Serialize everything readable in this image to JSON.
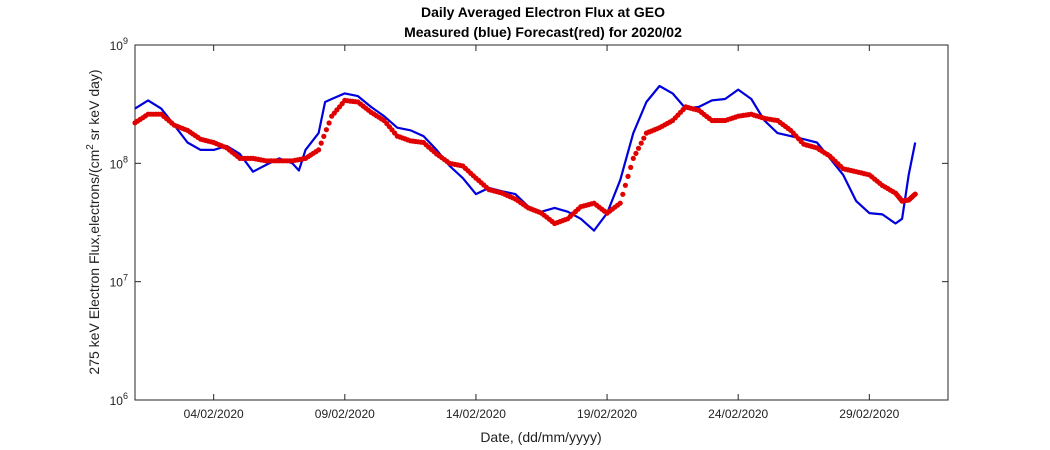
{
  "chart_data": {
    "type": "line",
    "title": "Daily Averaged Electron Flux at GEO",
    "subtitle": "Measured (blue) Forecast(red) for 2020/02",
    "xlabel": "Date, (dd/mm/yyyy)",
    "ylabel_main": "275 keV Electron Flux,electrons/(cm",
    "ylabel_sup": "2",
    "ylabel_end": " sr keV day)",
    "y_scale": "log",
    "xlim": [
      "2020-02-01",
      "2020-03-03"
    ],
    "ylim": [
      1000000,
      1000000000
    ],
    "grid": false,
    "x_ticks": [
      {
        "date": "2020-02-04",
        "label": "04/02/2020"
      },
      {
        "date": "2020-02-09",
        "label": "09/02/2020"
      },
      {
        "date": "2020-02-14",
        "label": "14/02/2020"
      },
      {
        "date": "2020-02-19",
        "label": "19/02/2020"
      },
      {
        "date": "2020-02-24",
        "label": "24/02/2020"
      },
      {
        "date": "2020-02-29",
        "label": "29/02/2020"
      }
    ],
    "y_ticks": [
      {
        "value": 1000000,
        "base": "10",
        "exp": "6"
      },
      {
        "value": 10000000,
        "base": "10",
        "exp": "7"
      },
      {
        "value": 100000000,
        "base": "10",
        "exp": "8"
      },
      {
        "value": 1000000000,
        "base": "10",
        "exp": "9"
      }
    ],
    "series": [
      {
        "color": "#0000dd",
        "style": "line",
        "points": [
          [
            "2020-02-01 00:00",
            290000000.0
          ],
          [
            "2020-02-01 12:00",
            340000000.0
          ],
          [
            "2020-02-02 00:00",
            290000000.0
          ],
          [
            "2020-02-02 12:00",
            210000000.0
          ],
          [
            "2020-02-03 00:00",
            150000000.0
          ],
          [
            "2020-02-03 12:00",
            130000000.0
          ],
          [
            "2020-02-04 00:00",
            130000000.0
          ],
          [
            "2020-02-04 12:00",
            140000000.0
          ],
          [
            "2020-02-05 00:00",
            120000000.0
          ],
          [
            "2020-02-05 12:00",
            85000000.0
          ],
          [
            "2020-02-06 00:00",
            97000000.0
          ],
          [
            "2020-02-06 12:00",
            110000000.0
          ],
          [
            "2020-02-07 00:00",
            100000000.0
          ],
          [
            "2020-02-07 06:00",
            87000000.0
          ],
          [
            "2020-02-07 12:00",
            130000000.0
          ],
          [
            "2020-02-08 00:00",
            180000000.0
          ],
          [
            "2020-02-08 06:00",
            330000000.0
          ],
          [
            "2020-02-08 12:00",
            350000000.0
          ],
          [
            "2020-02-09 00:00",
            390000000.0
          ],
          [
            "2020-02-09 12:00",
            370000000.0
          ],
          [
            "2020-02-10 00:00",
            300000000.0
          ],
          [
            "2020-02-10 12:00",
            250000000.0
          ],
          [
            "2020-02-11 00:00",
            200000000.0
          ],
          [
            "2020-02-11 12:00",
            190000000.0
          ],
          [
            "2020-02-12 00:00",
            170000000.0
          ],
          [
            "2020-02-12 12:00",
            130000000.0
          ],
          [
            "2020-02-13 00:00",
            95000000.0
          ],
          [
            "2020-02-13 12:00",
            75000000.0
          ],
          [
            "2020-02-14 00:00",
            55000000.0
          ],
          [
            "2020-02-14 12:00",
            62000000.0
          ],
          [
            "2020-02-15 00:00",
            58000000.0
          ],
          [
            "2020-02-15 12:00",
            55000000.0
          ],
          [
            "2020-02-16 00:00",
            43000000.0
          ],
          [
            "2020-02-16 12:00",
            39000000.0
          ],
          [
            "2020-02-17 00:00",
            42000000.0
          ],
          [
            "2020-02-17 12:00",
            39000000.0
          ],
          [
            "2020-02-18 00:00",
            34000000.0
          ],
          [
            "2020-02-18 12:00",
            27000000.0
          ],
          [
            "2020-02-19 00:00",
            38000000.0
          ],
          [
            "2020-02-19 12:00",
            72000000.0
          ],
          [
            "2020-02-20 00:00",
            180000000.0
          ],
          [
            "2020-02-20 12:00",
            330000000.0
          ],
          [
            "2020-02-21 00:00",
            450000000.0
          ],
          [
            "2020-02-21 12:00",
            390000000.0
          ],
          [
            "2020-02-22 00:00",
            290000000.0
          ],
          [
            "2020-02-22 12:00",
            300000000.0
          ],
          [
            "2020-02-23 00:00",
            340000000.0
          ],
          [
            "2020-02-23 12:00",
            350000000.0
          ],
          [
            "2020-02-24 00:00",
            420000000.0
          ],
          [
            "2020-02-24 12:00",
            350000000.0
          ],
          [
            "2020-02-25 00:00",
            230000000.0
          ],
          [
            "2020-02-25 12:00",
            180000000.0
          ],
          [
            "2020-02-26 00:00",
            170000000.0
          ],
          [
            "2020-02-26 12:00",
            160000000.0
          ],
          [
            "2020-02-27 00:00",
            150000000.0
          ],
          [
            "2020-02-27 12:00",
            110000000.0
          ],
          [
            "2020-02-28 00:00",
            80000000.0
          ],
          [
            "2020-02-28 12:00",
            48000000.0
          ],
          [
            "2020-02-29 00:00",
            38000000.0
          ],
          [
            "2020-02-29 12:00",
            37000000.0
          ],
          [
            "2020-03-01 00:00",
            31000000.0
          ],
          [
            "2020-03-01 06:00",
            34000000.0
          ],
          [
            "2020-03-01 12:00",
            80000000.0
          ],
          [
            "2020-03-01 18:00",
            150000000.0
          ]
        ]
      },
      {
        "color": "#e00000",
        "style": "dots",
        "points": [
          [
            "2020-02-01 00:00",
            220000000.0
          ],
          [
            "2020-02-01 12:00",
            260000000.0
          ],
          [
            "2020-02-02 00:00",
            260000000.0
          ],
          [
            "2020-02-02 12:00",
            210000000.0
          ],
          [
            "2020-02-03 00:00",
            190000000.0
          ],
          [
            "2020-02-03 12:00",
            160000000.0
          ],
          [
            "2020-02-04 00:00",
            150000000.0
          ],
          [
            "2020-02-04 12:00",
            135000000.0
          ],
          [
            "2020-02-05 00:00",
            110000000.0
          ],
          [
            "2020-02-05 12:00",
            110000000.0
          ],
          [
            "2020-02-06 00:00",
            105000000.0
          ],
          [
            "2020-02-06 12:00",
            105000000.0
          ],
          [
            "2020-02-07 00:00",
            105000000.0
          ],
          [
            "2020-02-07 12:00",
            110000000.0
          ],
          [
            "2020-02-08 00:00",
            130000000.0
          ],
          [
            "2020-02-08 12:00",
            250000000.0
          ],
          [
            "2020-02-09 00:00",
            340000000.0
          ],
          [
            "2020-02-09 12:00",
            330000000.0
          ],
          [
            "2020-02-10 00:00",
            270000000.0
          ],
          [
            "2020-02-10 12:00",
            230000000.0
          ],
          [
            "2020-02-11 00:00",
            170000000.0
          ],
          [
            "2020-02-11 12:00",
            155000000.0
          ],
          [
            "2020-02-12 00:00",
            150000000.0
          ],
          [
            "2020-02-12 12:00",
            120000000.0
          ],
          [
            "2020-02-13 00:00",
            100000000.0
          ],
          [
            "2020-02-13 12:00",
            95000000.0
          ],
          [
            "2020-02-14 00:00",
            75000000.0
          ],
          [
            "2020-02-14 12:00",
            60000000.0
          ],
          [
            "2020-02-15 00:00",
            56000000.0
          ],
          [
            "2020-02-15 12:00",
            50000000.0
          ],
          [
            "2020-02-16 00:00",
            42000000.0
          ],
          [
            "2020-02-16 12:00",
            38000000.0
          ],
          [
            "2020-02-17 00:00",
            31000000.0
          ],
          [
            "2020-02-17 12:00",
            34000000.0
          ],
          [
            "2020-02-18 00:00",
            43000000.0
          ],
          [
            "2020-02-18 12:00",
            46000000.0
          ],
          [
            "2020-02-19 00:00",
            38000000.0
          ],
          [
            "2020-02-19 12:00",
            46000000.0
          ],
          [
            "2020-02-20 00:00",
            110000000.0
          ],
          [
            "2020-02-20 12:00",
            180000000.0
          ],
          [
            "2020-02-21 00:00",
            200000000.0
          ],
          [
            "2020-02-21 12:00",
            230000000.0
          ],
          [
            "2020-02-22 00:00",
            300000000.0
          ],
          [
            "2020-02-22 12:00",
            280000000.0
          ],
          [
            "2020-02-23 00:00",
            230000000.0
          ],
          [
            "2020-02-23 12:00",
            230000000.0
          ],
          [
            "2020-02-24 00:00",
            250000000.0
          ],
          [
            "2020-02-24 12:00",
            260000000.0
          ],
          [
            "2020-02-25 00:00",
            240000000.0
          ],
          [
            "2020-02-25 12:00",
            230000000.0
          ],
          [
            "2020-02-26 00:00",
            190000000.0
          ],
          [
            "2020-02-26 12:00",
            145000000.0
          ],
          [
            "2020-02-27 00:00",
            135000000.0
          ],
          [
            "2020-02-27 12:00",
            115000000.0
          ],
          [
            "2020-02-28 00:00",
            90000000.0
          ],
          [
            "2020-02-28 12:00",
            85000000.0
          ],
          [
            "2020-02-29 00:00",
            80000000.0
          ],
          [
            "2020-02-29 12:00",
            65000000.0
          ],
          [
            "2020-03-01 00:00",
            56000000.0
          ],
          [
            "2020-03-01 06:00",
            48000000.0
          ],
          [
            "2020-03-01 12:00",
            49000000.0
          ],
          [
            "2020-03-01 18:00",
            55000000.0
          ]
        ]
      }
    ]
  }
}
